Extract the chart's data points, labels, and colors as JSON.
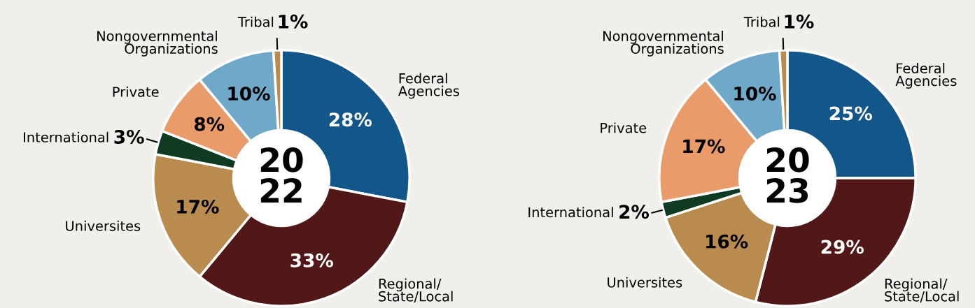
{
  "chart_data": [
    {
      "type": "donut",
      "title": "20\n22",
      "categories": [
        "Federal\nAgencies",
        "Regional/\nState/Local",
        "Universites",
        "International",
        "Private",
        "Nongovernmental\nOrganizations",
        "Tribal"
      ],
      "values": [
        28,
        33,
        17,
        3,
        8,
        10,
        1
      ],
      "value_labels": [
        "28%",
        "33%",
        "17%",
        "3%",
        "8%",
        "10%",
        "1%"
      ],
      "colors": [
        "#12568a",
        "#521818",
        "#b98b4f",
        "#0e3b22",
        "#e99c6a",
        "#6fa8c8",
        "#b98b4f"
      ]
    },
    {
      "type": "donut",
      "title": "20\n23",
      "categories": [
        "Federal\nAgencies",
        "Regional/\nState/Local",
        "Universites",
        "International",
        "Private",
        "Nongovernmental\nOrganizations",
        "Tribal"
      ],
      "values": [
        25,
        29,
        16,
        2,
        17,
        10,
        1
      ],
      "value_labels": [
        "25%",
        "29%",
        "16%",
        "2%",
        "17%",
        "10%",
        "1%"
      ],
      "colors": [
        "#12568a",
        "#521818",
        "#b98b4f",
        "#0e3b22",
        "#e99c6a",
        "#6fa8c8",
        "#b98b4f"
      ]
    }
  ]
}
